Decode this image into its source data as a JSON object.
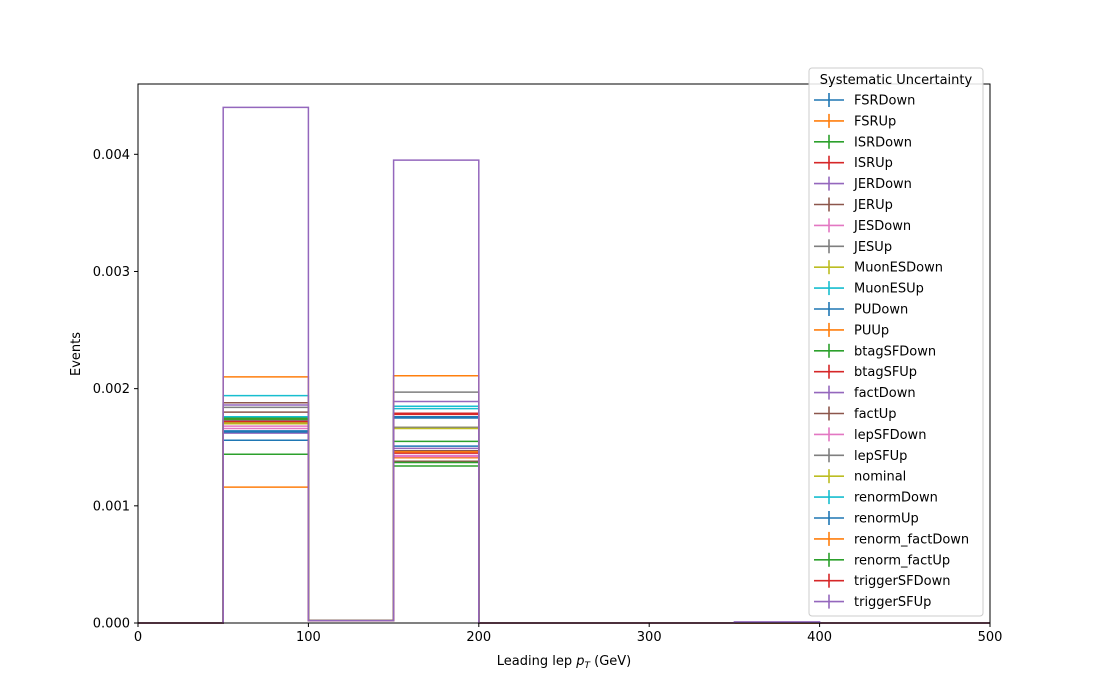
{
  "chart_data": {
    "type": "line",
    "drawstyle": "step-histogram",
    "xlabel_main": "Leading lep ",
    "xlabel_math": "p",
    "xlabel_sub": "T",
    "xlabel_unit": " (GeV)",
    "ylabel": "Events",
    "xlim": [
      0,
      500
    ],
    "ylim": [
      0,
      0.0046
    ],
    "x_ticks": [
      "0",
      "100",
      "200",
      "300",
      "400",
      "500"
    ],
    "y_ticks": [
      "0.000",
      "0.001",
      "0.002",
      "0.003",
      "0.004"
    ],
    "grid": false,
    "legend_title": "Systematic Uncertainty",
    "legend_position": "top-right",
    "bin_edges": [
      0,
      50,
      100,
      150,
      200,
      250,
      300,
      350,
      400,
      450,
      500
    ],
    "series": [
      {
        "name": "FSRDown",
        "color": "#1f77b4",
        "values": [
          0,
          0.00156,
          2e-05,
          0.00151,
          0,
          0,
          0,
          0,
          0,
          0
        ]
      },
      {
        "name": "FSRUp",
        "color": "#ff7f0e",
        "values": [
          0,
          0.00116,
          2e-05,
          0.00141,
          0,
          0,
          0,
          0,
          0,
          0
        ]
      },
      {
        "name": "ISRDown",
        "color": "#2ca02c",
        "values": [
          0,
          0.00144,
          2e-05,
          0.00134,
          0,
          0,
          0,
          0,
          0,
          0
        ]
      },
      {
        "name": "ISRUp",
        "color": "#d62728",
        "values": [
          0,
          0.00172,
          2e-05,
          0.00145,
          0,
          0,
          0,
          0,
          0,
          0
        ]
      },
      {
        "name": "JERDown",
        "color": "#9467bd",
        "values": [
          0,
          0.00186,
          2e-05,
          0.00189,
          0,
          0,
          0,
          0,
          0,
          0
        ]
      },
      {
        "name": "JERUp",
        "color": "#8c564b",
        "values": [
          0,
          0.00188,
          2e-05,
          0.00147,
          0,
          0,
          0,
          0,
          0,
          0
        ]
      },
      {
        "name": "JESDown",
        "color": "#e377c2",
        "values": [
          0,
          0.00166,
          2e-05,
          0.00142,
          0,
          0,
          0,
          0,
          0,
          0
        ]
      },
      {
        "name": "JESUp",
        "color": "#7f7f7f",
        "values": [
          0,
          0.00184,
          2e-05,
          0.00197,
          0,
          0,
          0,
          0,
          0,
          0
        ]
      },
      {
        "name": "MuonESDown",
        "color": "#bcbd22",
        "values": [
          0,
          0.0017,
          2e-05,
          0.00167,
          0,
          0,
          0,
          0,
          0,
          0
        ]
      },
      {
        "name": "MuonESUp",
        "color": "#17becf",
        "values": [
          0,
          0.00194,
          2e-05,
          0.00185,
          0,
          0,
          0,
          0,
          0,
          0
        ]
      },
      {
        "name": "PUDown",
        "color": "#1f77b4",
        "values": [
          0,
          0.00164,
          2e-05,
          0.00175,
          0,
          0,
          0,
          0,
          0,
          0
        ]
      },
      {
        "name": "PUUp",
        "color": "#ff7f0e",
        "values": [
          0,
          0.0021,
          2e-05,
          0.00211,
          0,
          0,
          0,
          0,
          0,
          0
        ]
      },
      {
        "name": "btagSFDown",
        "color": "#2ca02c",
        "values": [
          0,
          0.00175,
          2e-05,
          0.00155,
          0,
          0,
          0,
          0,
          0,
          0
        ]
      },
      {
        "name": "btagSFUp",
        "color": "#d62728",
        "values": [
          0,
          0.00171,
          2e-05,
          0.00178,
          0,
          0,
          0,
          0,
          0,
          0
        ]
      },
      {
        "name": "factDown",
        "color": "#9467bd",
        "values": [
          0,
          0.00162,
          2e-05,
          0.00149,
          0,
          0,
          0,
          0,
          0,
          0
        ]
      },
      {
        "name": "factUp",
        "color": "#8c564b",
        "values": [
          0,
          0.0018,
          2e-05,
          0.00138,
          0,
          0,
          0,
          0,
          0,
          0
        ]
      },
      {
        "name": "lepSFDown",
        "color": "#e377c2",
        "values": [
          0,
          0.00168,
          2e-05,
          0.00143,
          0,
          0,
          0,
          0,
          0,
          0
        ]
      },
      {
        "name": "lepSFUp",
        "color": "#7f7f7f",
        "values": [
          0,
          0.00173,
          2e-05,
          0.00167,
          0,
          0,
          0,
          0,
          0,
          0
        ]
      },
      {
        "name": "nominal",
        "color": "#bcbd22",
        "values": [
          0,
          0.00171,
          2e-05,
          0.00166,
          0,
          0,
          0,
          0,
          0,
          0
        ]
      },
      {
        "name": "renormDown",
        "color": "#17becf",
        "values": [
          0,
          0.00176,
          2e-05,
          0.00183,
          0,
          0,
          0,
          0,
          0,
          0
        ]
      },
      {
        "name": "renormUp",
        "color": "#1f77b4",
        "values": [
          0,
          0.00163,
          2e-05,
          0.00176,
          0,
          0,
          0,
          0,
          0,
          0
        ]
      },
      {
        "name": "renorm_factDown",
        "color": "#ff7f0e",
        "values": [
          0,
          0.00174,
          2e-05,
          0.00146,
          0,
          0,
          0,
          0,
          0,
          0
        ]
      },
      {
        "name": "renorm_factUp",
        "color": "#2ca02c",
        "values": [
          0,
          0.00174,
          2e-05,
          0.00137,
          0,
          0,
          0,
          0,
          0,
          0
        ]
      },
      {
        "name": "triggerSFDown",
        "color": "#d62728",
        "values": [
          0,
          0.00172,
          2e-05,
          0.00179,
          0,
          0,
          0,
          0,
          0,
          0
        ]
      },
      {
        "name": "triggerSFUp",
        "color": "#9467bd",
        "values": [
          0,
          0.0044,
          2e-05,
          0.00395,
          0,
          0,
          0,
          1e-05,
          0,
          0
        ]
      }
    ]
  }
}
